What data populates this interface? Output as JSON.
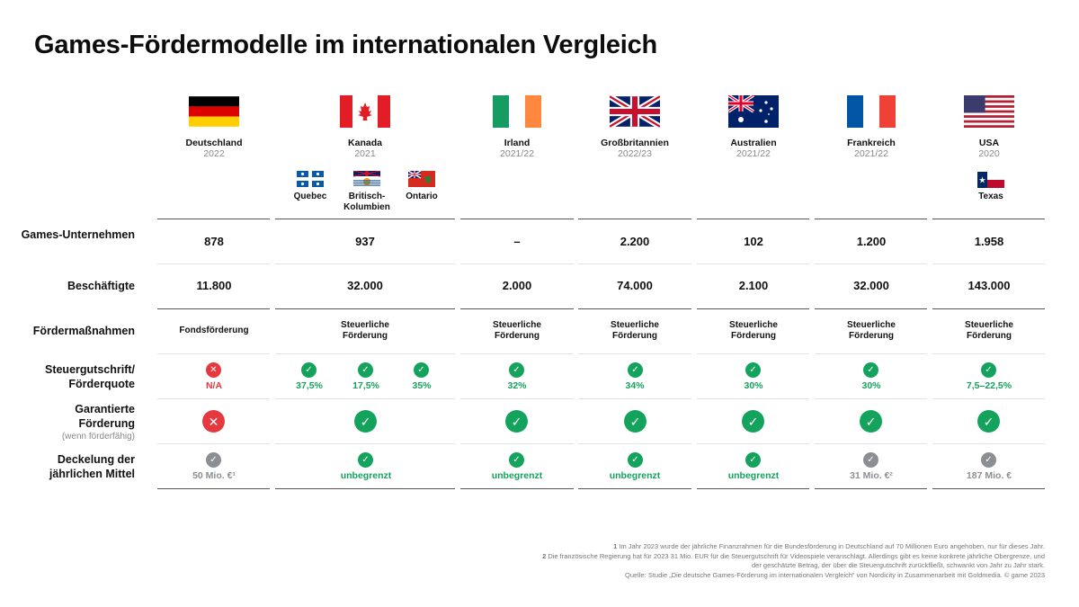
{
  "title": "Games-Fördermodelle im internationalen Vergleich",
  "countries": [
    {
      "name": "Deutschland",
      "year": "2022",
      "flag": "germany-flag"
    },
    {
      "name": "Kanada",
      "year": "2021",
      "flag": "canada-flag"
    },
    {
      "name": "Irland",
      "year": "2021/22",
      "flag": "ireland-flag"
    },
    {
      "name": "Großbritannien",
      "year": "2022/23",
      "flag": "uk-flag"
    },
    {
      "name": "Australien",
      "year": "2021/22",
      "flag": "australia-flag"
    },
    {
      "name": "Frankreich",
      "year": "2021/22",
      "flag": "france-flag"
    },
    {
      "name": "USA",
      "year": "2020",
      "flag": "usa-flag"
    }
  ],
  "subregions": {
    "quebec": "Quebec",
    "bc": "Britisch-Kolumbien",
    "ontario": "Ontario",
    "texas": "Texas"
  },
  "row_labels": {
    "companies": "Games-Unternehmen",
    "employees": "Beschäftigte",
    "measures": "Fördermaßnahmen",
    "tax_credit": "Steuergutschrift/ Förderquote",
    "guaranteed": "Garantierte Förderung",
    "guaranteed_note": "(wenn förderfähig)",
    "cap": "Deckelung der jährlichen Mittel"
  },
  "companies": [
    "878",
    "937",
    "–",
    "2.200",
    "102",
    "1.200",
    "1.958"
  ],
  "employees": [
    "11.800",
    "32.000",
    "2.000",
    "74.000",
    "2.100",
    "32.000",
    "143.000"
  ],
  "measures": [
    "Fondsförderung",
    "Steuerliche Förderung",
    "Steuerliche Förderung",
    "Steuerliche Förderung",
    "Steuerliche Förderung",
    "Steuerliche Förderung",
    "Steuerliche Förderung"
  ],
  "tax_credit": {
    "de": "N/A",
    "ca_quebec": "37,5%",
    "ca_bc": "17,5%",
    "ca_ontario": "35%",
    "ie": "32%",
    "uk": "34%",
    "au": "30%",
    "fr": "30%",
    "us": "7,5–22,5%"
  },
  "cap": [
    "50 Mio. €¹",
    "unbegrenzt",
    "unbegrenzt",
    "unbegrenzt",
    "unbegrenzt",
    "31 Mio. €²",
    "187 Mio. €"
  ],
  "icons": {
    "check": "✓",
    "cross": "✕"
  },
  "colors": {
    "green": "#14a35c",
    "red": "#e5393f",
    "grey": "#8b8f93"
  },
  "footnotes": {
    "n1_mark": "1",
    "n1": "Im Jahr 2023 wurde der jährliche Finanzrahmen für die Bundesförderung in Deutschland auf 70 Millionen Euro angehoben, nur für dieses Jahr.",
    "n2_mark": "2",
    "n2": "Die französische Regierung hat für 2023 31 Mio. EUR für die Steuergutschrift für Videospiele veranschlagt. Allerdings gibt es keine konkrete jährliche Obergrenze, und der geschätzte Betrag, der über die Steuergutschrift zurückfließt, schwankt von Jahr zu Jahr stark.",
    "source": "Quelle: Studie „Die deutsche Games-Förderung im internationalen Vergleich“ von Nordicity in Zusammenarbeit mit Goldmedia. © game 2023"
  }
}
